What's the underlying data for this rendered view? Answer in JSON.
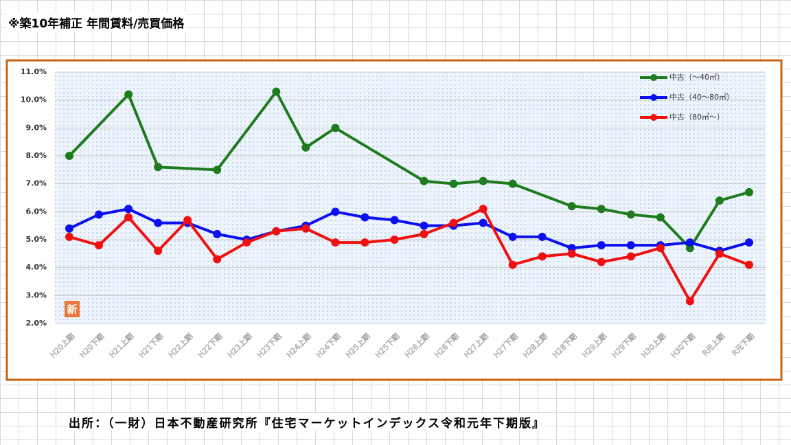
{
  "title": "※築10年補正 年間賃料/売買価格",
  "source": "出所：（一財）日本不動産研究所『住宅マーケットインデックス令和元年下期版』",
  "chart_data": {
    "type": "line",
    "categories": [
      "H20上期",
      "H20下期",
      "H21上期",
      "H21下期",
      "H22上期",
      "H22下期",
      "H23上期",
      "H23下期",
      "H24上期",
      "H24下期",
      "H25上期",
      "H25下期",
      "H26上期",
      "H26下期",
      "H27上期",
      "H27下期",
      "H28上期",
      "H28下期",
      "H29上期",
      "H29下期",
      "H30上期",
      "H30下期",
      "R元上期",
      "R元下期"
    ],
    "series": [
      {
        "name": "中古（～40㎡）",
        "color": "#1e7b1e",
        "values": [
          8.0,
          null,
          10.2,
          7.6,
          null,
          7.5,
          null,
          10.3,
          8.3,
          9.0,
          null,
          null,
          7.1,
          7.0,
          7.1,
          7.0,
          null,
          6.2,
          6.1,
          5.9,
          5.8,
          4.7,
          6.4,
          6.7
        ]
      },
      {
        "name": "中古（40～80㎡）",
        "color": "#0a10f0",
        "values": [
          5.4,
          5.9,
          6.1,
          5.6,
          5.6,
          5.2,
          5.0,
          5.3,
          5.5,
          6.0,
          5.8,
          5.7,
          5.5,
          5.5,
          5.6,
          5.1,
          5.1,
          4.7,
          4.8,
          4.8,
          4.8,
          4.9,
          4.6,
          4.9
        ]
      },
      {
        "name": "中古（80㎡～）",
        "color": "#f01010",
        "values": [
          5.1,
          4.8,
          5.8,
          4.6,
          5.7,
          4.3,
          4.9,
          5.3,
          5.4,
          4.9,
          4.9,
          5.0,
          5.2,
          5.6,
          6.1,
          4.1,
          4.4,
          4.5,
          4.2,
          4.4,
          4.7,
          2.8,
          4.5,
          4.1
        ]
      }
    ],
    "ylim": [
      2,
      11
    ],
    "yticks": [
      {
        "value": 2,
        "label": "2.0%"
      },
      {
        "value": 3,
        "label": "3.0%"
      },
      {
        "value": 4,
        "label": "4.0%"
      },
      {
        "value": 5,
        "label": "5.0%"
      },
      {
        "value": 6,
        "label": "6.0%"
      },
      {
        "value": 7,
        "label": "7.0%"
      },
      {
        "value": 8,
        "label": "8.0%"
      },
      {
        "value": 9,
        "label": "9.0%"
      },
      {
        "value": 10,
        "label": "10.0%"
      },
      {
        "value": 11,
        "label": "11.0%"
      }
    ],
    "grid": true,
    "legend": "upper right"
  }
}
